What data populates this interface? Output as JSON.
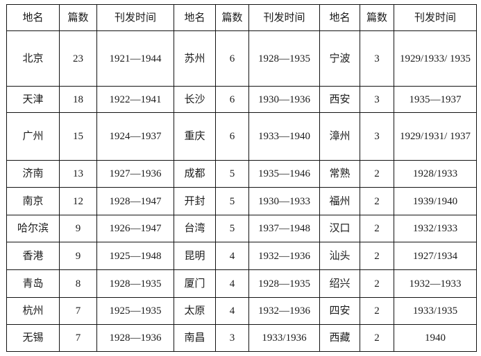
{
  "table": {
    "headers": [
      "地名",
      "篇数",
      "刊发时间",
      "地名",
      "篇数",
      "刊发时间",
      "地名",
      "篇数",
      "刊发时间"
    ],
    "rows": [
      [
        "北京",
        "23",
        "1921—1944",
        "苏州",
        "6",
        "1928—1935",
        "宁波",
        "3",
        "1929/1933/ 1935"
      ],
      [
        "天津",
        "18",
        "1922—1941",
        "长沙",
        "6",
        "1930—1936",
        "西安",
        "3",
        "1935—1937"
      ],
      [
        "广州",
        "15",
        "1924—1937",
        "重庆",
        "6",
        "1933—1940",
        "漳州",
        "3",
        "1929/1931/ 1937"
      ],
      [
        "济南",
        "13",
        "1927—1936",
        "成都",
        "5",
        "1935—1946",
        "常熟",
        "2",
        "1928/1933"
      ],
      [
        "南京",
        "12",
        "1928—1947",
        "开封",
        "5",
        "1930—1933",
        "福州",
        "2",
        "1939/1940"
      ],
      [
        "哈尔滨",
        "9",
        "1926—1947",
        "台湾",
        "5",
        "1937—1948",
        "汉口",
        "2",
        "1932/1933"
      ],
      [
        "香港",
        "9",
        "1925—1948",
        "昆明",
        "4",
        "1932—1936",
        "汕头",
        "2",
        "1927/1934"
      ],
      [
        "青岛",
        "8",
        "1928—1935",
        "厦门",
        "4",
        "1928—1935",
        "绍兴",
        "2",
        "1932—1933"
      ],
      [
        "杭州",
        "7",
        "1925—1935",
        "太原",
        "4",
        "1932—1936",
        "四安",
        "2",
        "1933/1935"
      ],
      [
        "无锡",
        "7",
        "1928—1936",
        "南昌",
        "3",
        "1933/1936",
        "西藏",
        "2",
        "1940"
      ]
    ]
  }
}
